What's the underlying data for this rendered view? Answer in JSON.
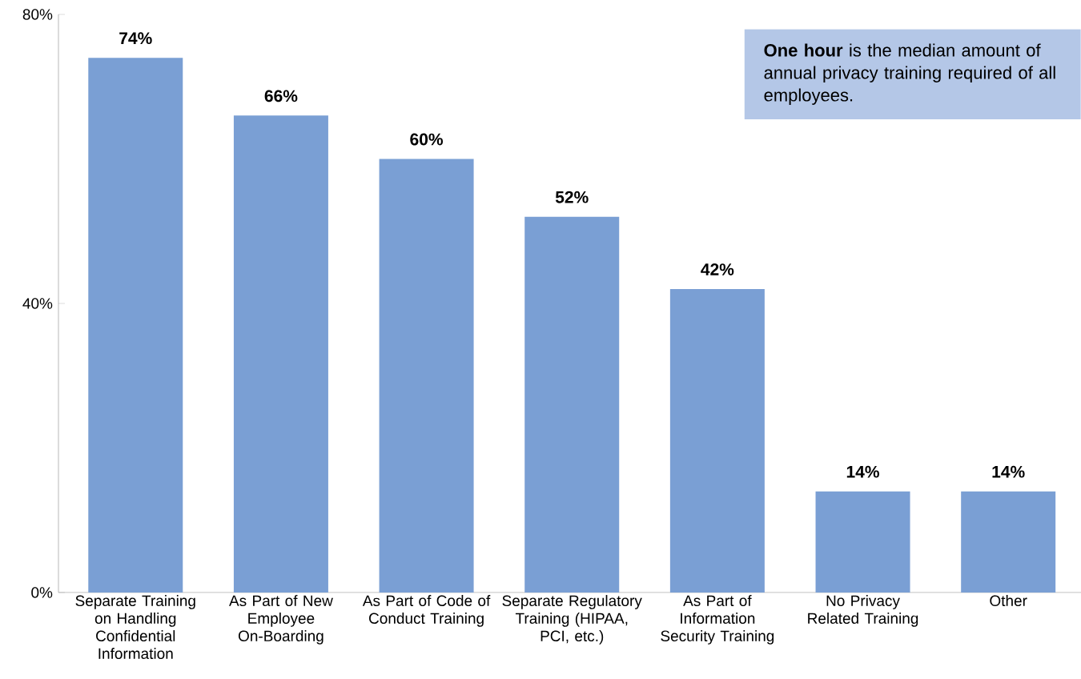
{
  "chart_data": {
    "type": "bar",
    "categories": [
      "Separate Training on Handling Confidential Information",
      "As Part of New Employee On-Boarding",
      "As Part of Code of Conduct Training",
      "Separate Regulatory Training (HIPAA, PCI, etc.)",
      "As Part of Information Security Training",
      "No Privacy Related Training",
      "Other"
    ],
    "values": [
      74,
      66,
      60,
      52,
      42,
      14,
      14
    ],
    "value_labels": [
      "74%",
      "66%",
      "60%",
      "52%",
      "42%",
      "14%",
      "14%"
    ],
    "color": "#7a9fd4",
    "ylim": [
      0,
      80
    ],
    "yticks": [
      {
        "value": 0,
        "label": "0%"
      },
      {
        "value": 40,
        "label": "40%"
      },
      {
        "value": 80,
        "label": "80%"
      }
    ],
    "grid": false,
    "annotations": [
      "**One hour** is the median amount of annual privacy training required of all employees."
    ]
  }
}
